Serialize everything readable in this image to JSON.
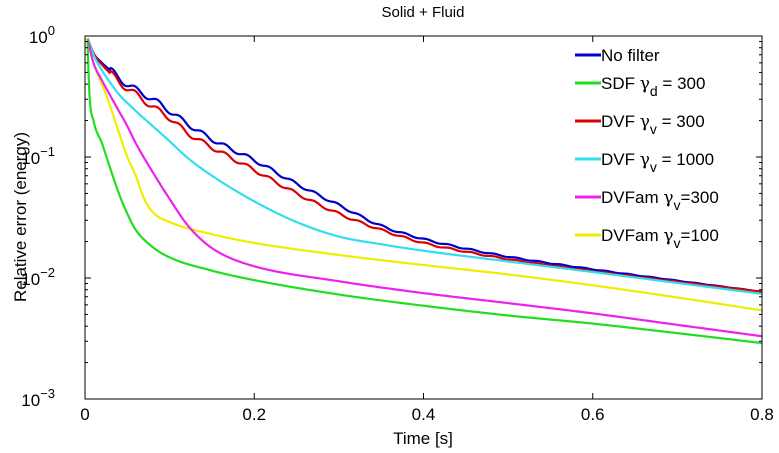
{
  "chart_data": {
    "type": "line",
    "title": "Solid + Fluid",
    "xlabel": "Time [s]",
    "ylabel": "Relative error (energy)",
    "xlim": [
      0,
      0.8
    ],
    "ylim": [
      0.001,
      1
    ],
    "yscale": "log",
    "grid": false,
    "legend_position": "top-right",
    "x_ticks": [
      0,
      0.2,
      0.4,
      0.6,
      0.8
    ],
    "x_tick_labels": [
      "0",
      "0.2",
      "0.4",
      "0.6",
      "0.8"
    ],
    "y_ticks": [
      0.001,
      0.01,
      0.1,
      1
    ],
    "y_tick_labels": [
      {
        "base": "10",
        "exp": "−3"
      },
      {
        "base": "10",
        "exp": "−2"
      },
      {
        "base": "10",
        "exp": "−1"
      },
      {
        "base": "10",
        "exp": "0"
      }
    ],
    "series": [
      {
        "name": "No filter",
        "legend": {
          "pre": "No filter",
          "sym": "",
          "sub": "",
          "post": ""
        },
        "color": "#0000cc",
        "oscillation": true,
        "points": [
          [
            0.003,
            0.95
          ],
          [
            0.01,
            0.72
          ],
          [
            0.02,
            0.6
          ],
          [
            0.03,
            0.52
          ],
          [
            0.04,
            0.45
          ],
          [
            0.05,
            0.4
          ],
          [
            0.06,
            0.36
          ],
          [
            0.08,
            0.3
          ],
          [
            0.1,
            0.24
          ],
          [
            0.12,
            0.19
          ],
          [
            0.15,
            0.14
          ],
          [
            0.2,
            0.094
          ],
          [
            0.25,
            0.06
          ],
          [
            0.3,
            0.04
          ],
          [
            0.35,
            0.027
          ],
          [
            0.4,
            0.021
          ],
          [
            0.45,
            0.0175
          ],
          [
            0.5,
            0.015
          ],
          [
            0.6,
            0.0118
          ],
          [
            0.7,
            0.0095
          ],
          [
            0.8,
            0.0077
          ]
        ]
      },
      {
        "name": "SDF γd = 300",
        "legend": {
          "pre": "SDF ",
          "sym": "γ",
          "sub": "d",
          "post": " = 300"
        },
        "color": "#22dd22",
        "oscillation": false,
        "points": [
          [
            0.003,
            0.95
          ],
          [
            0.005,
            0.35
          ],
          [
            0.01,
            0.2
          ],
          [
            0.02,
            0.13
          ],
          [
            0.03,
            0.08
          ],
          [
            0.04,
            0.05
          ],
          [
            0.05,
            0.034
          ],
          [
            0.06,
            0.025
          ],
          [
            0.08,
            0.018
          ],
          [
            0.1,
            0.0148
          ],
          [
            0.15,
            0.0115
          ],
          [
            0.2,
            0.0096
          ],
          [
            0.3,
            0.0073
          ],
          [
            0.4,
            0.0059
          ],
          [
            0.5,
            0.0049
          ],
          [
            0.6,
            0.0042
          ],
          [
            0.7,
            0.0035
          ],
          [
            0.8,
            0.0029
          ]
        ]
      },
      {
        "name": "DVF γv = 300",
        "legend": {
          "pre": "DVF ",
          "sym": "γ",
          "sub": "v",
          "post": " = 300"
        },
        "color": "#dd0000",
        "oscillation": true,
        "points": [
          [
            0.003,
            0.95
          ],
          [
            0.01,
            0.72
          ],
          [
            0.02,
            0.58
          ],
          [
            0.03,
            0.49
          ],
          [
            0.04,
            0.42
          ],
          [
            0.05,
            0.37
          ],
          [
            0.06,
            0.33
          ],
          [
            0.08,
            0.26
          ],
          [
            0.1,
            0.21
          ],
          [
            0.12,
            0.16
          ],
          [
            0.15,
            0.12
          ],
          [
            0.2,
            0.078
          ],
          [
            0.25,
            0.05
          ],
          [
            0.3,
            0.034
          ],
          [
            0.35,
            0.025
          ],
          [
            0.4,
            0.0195
          ],
          [
            0.45,
            0.0165
          ],
          [
            0.5,
            0.0143
          ],
          [
            0.6,
            0.0114
          ],
          [
            0.7,
            0.0093
          ],
          [
            0.8,
            0.0077
          ]
        ]
      },
      {
        "name": "DVF γv = 1000",
        "legend": {
          "pre": "DVF ",
          "sym": "γ",
          "sub": "v",
          "post": " = 1000"
        },
        "color": "#33ddee",
        "oscillation": false,
        "points": [
          [
            0.003,
            0.95
          ],
          [
            0.01,
            0.7
          ],
          [
            0.02,
            0.52
          ],
          [
            0.03,
            0.41
          ],
          [
            0.04,
            0.33
          ],
          [
            0.05,
            0.28
          ],
          [
            0.06,
            0.24
          ],
          [
            0.08,
            0.18
          ],
          [
            0.1,
            0.135
          ],
          [
            0.12,
            0.1
          ],
          [
            0.15,
            0.07
          ],
          [
            0.2,
            0.043
          ],
          [
            0.25,
            0.029
          ],
          [
            0.3,
            0.022
          ],
          [
            0.35,
            0.019
          ],
          [
            0.4,
            0.0168
          ],
          [
            0.5,
            0.0137
          ],
          [
            0.6,
            0.0112
          ],
          [
            0.7,
            0.0091
          ],
          [
            0.8,
            0.0074
          ]
        ]
      },
      {
        "name": "DVFam γv=300",
        "legend": {
          "pre": "DVFam ",
          "sym": "γ",
          "sub": "v",
          "post": "=300"
        },
        "color": "#ee22ee",
        "oscillation": false,
        "points": [
          [
            0.003,
            0.95
          ],
          [
            0.01,
            0.6
          ],
          [
            0.02,
            0.43
          ],
          [
            0.03,
            0.32
          ],
          [
            0.04,
            0.24
          ],
          [
            0.05,
            0.18
          ],
          [
            0.06,
            0.13
          ],
          [
            0.08,
            0.075
          ],
          [
            0.1,
            0.045
          ],
          [
            0.12,
            0.028
          ],
          [
            0.14,
            0.02
          ],
          [
            0.16,
            0.016
          ],
          [
            0.2,
            0.0125
          ],
          [
            0.3,
            0.0094
          ],
          [
            0.4,
            0.0075
          ],
          [
            0.5,
            0.0062
          ],
          [
            0.6,
            0.0051
          ],
          [
            0.7,
            0.0041
          ],
          [
            0.8,
            0.0033
          ]
        ]
      },
      {
        "name": "DVFam γv=100",
        "legend": {
          "pre": "DVFam ",
          "sym": "γ",
          "sub": "v",
          "post": "=100"
        },
        "color": "#eeee00",
        "oscillation": false,
        "points": [
          [
            0.003,
            0.95
          ],
          [
            0.01,
            0.6
          ],
          [
            0.02,
            0.4
          ],
          [
            0.03,
            0.26
          ],
          [
            0.04,
            0.16
          ],
          [
            0.05,
            0.1
          ],
          [
            0.06,
            0.07
          ],
          [
            0.07,
            0.045
          ],
          [
            0.08,
            0.035
          ],
          [
            0.1,
            0.029
          ],
          [
            0.15,
            0.023
          ],
          [
            0.2,
            0.0195
          ],
          [
            0.3,
            0.0155
          ],
          [
            0.4,
            0.0128
          ],
          [
            0.5,
            0.0107
          ],
          [
            0.6,
            0.0087
          ],
          [
            0.7,
            0.0069
          ],
          [
            0.8,
            0.0054
          ]
        ]
      }
    ]
  }
}
